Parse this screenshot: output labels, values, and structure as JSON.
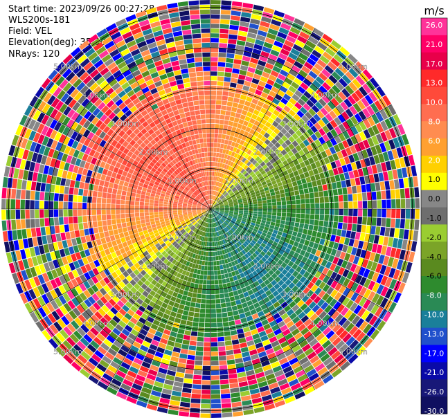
{
  "header": {
    "start_time": "Start time: 2023/09/26 00:27:28",
    "instrument": "WLS200s-181",
    "field": "Field: VEL",
    "elevation": "Elevation(deg): 35.30",
    "nrays": "NRays: 120"
  },
  "chart_data": {
    "type": "heatmap",
    "projection": "polar PPI",
    "n_rays": 120,
    "range_rings_km": [
      1.0,
      2.0,
      3.0,
      4.0,
      5.0
    ],
    "ring_labels": [
      "1.00km",
      "2.00km",
      "3.00km",
      "4.00km",
      "5.00km"
    ],
    "max_range_km": 5.18,
    "spoke_angles_deg": [
      0,
      30,
      60,
      90,
      120,
      150,
      180,
      210,
      240,
      270,
      300,
      330
    ],
    "colorbar": {
      "unit_label": "m/s",
      "tick_labels": [
        "26.0",
        "21.0",
        "17.0",
        "13.0",
        "10.0",
        "8.0",
        "6.0",
        "2.0",
        "1.0",
        "0.0",
        "-1.0",
        "-2.0",
        "-4.0",
        "-6.0",
        "-8.0",
        "-10.0",
        "-13.0",
        "-17.0",
        "-21.0",
        "-26.0",
        "-30.0"
      ],
      "colors": [
        "#ff3399",
        "#ff0066",
        "#e8004a",
        "#ff2a2a",
        "#ff4a3a",
        "#ff6d50",
        "#ff8c50",
        "#ffa030",
        "#ffd000",
        "#ffff00",
        "#878787",
        "#6e6e6e",
        "#9acd32",
        "#7ba428",
        "#5a8a1f",
        "#2e8b2e",
        "#2a8a55",
        "#1a7f9a",
        "#2050cc",
        "#0000ff",
        "#0a0aa8",
        "#181878",
        "#101060"
      ]
    },
    "pattern": {
      "near_range_km": 2.7,
      "far_noise": true,
      "positive_sector": "north-west half, 6 to 13 m/s",
      "negative_sector": "south-east half, -2 to -8 m/s",
      "zero_band_direction": "west-east"
    }
  }
}
